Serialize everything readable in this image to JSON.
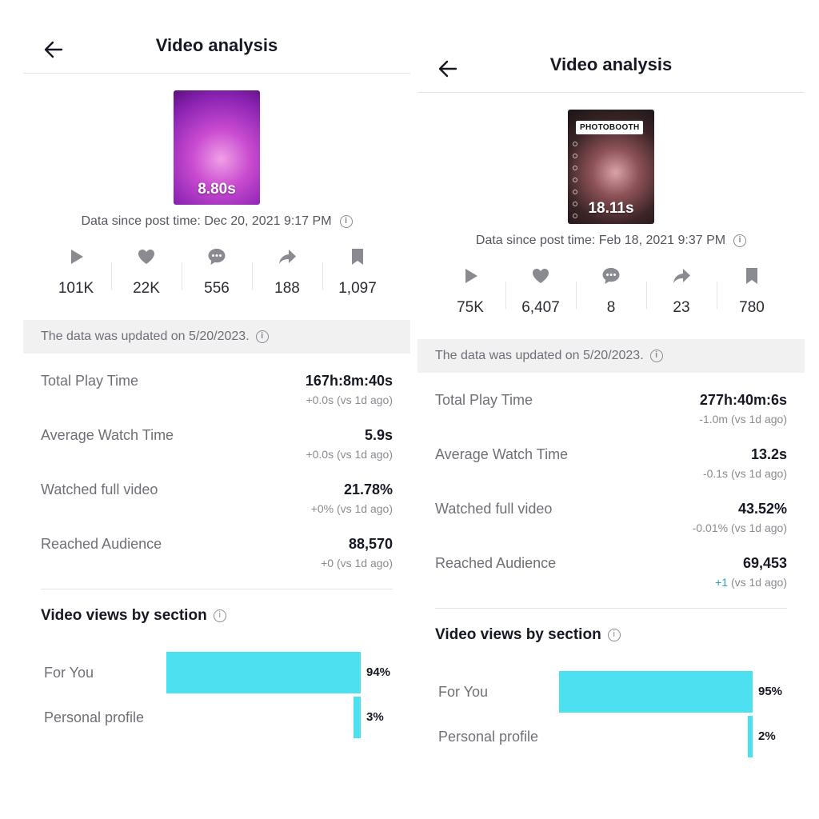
{
  "left": {
    "title": "Video analysis",
    "duration": "8.80s",
    "since": "Data since post time: Dec 20, 2021 9:17 PM",
    "stats": [
      {
        "icon": "play-icon",
        "value": "101K"
      },
      {
        "icon": "heart-icon",
        "value": "22K"
      },
      {
        "icon": "comment-icon",
        "value": "556"
      },
      {
        "icon": "share-icon",
        "value": "188"
      },
      {
        "icon": "bookmark-icon",
        "value": "1,097"
      }
    ],
    "updated": "The data was updated on 5/20/2023.",
    "metrics": [
      {
        "label": "Total Play Time",
        "value": "167h:8m:40s",
        "change": "+0.0s (vs 1d ago)"
      },
      {
        "label": "Average Watch Time",
        "value": "5.9s",
        "change": "+0.0s (vs 1d ago)"
      },
      {
        "label": "Watched full video",
        "value": "21.78%",
        "change": "+0% (vs 1d ago)"
      },
      {
        "label": "Reached Audience",
        "value": "88,570",
        "change": "+0 (vs 1d ago)"
      }
    ],
    "section_title": "Video views by section",
    "sections": [
      {
        "label": "For You",
        "percent_text": "94%",
        "percent": 94
      },
      {
        "label": "Personal profile",
        "percent_text": "3%",
        "percent": 3
      }
    ]
  },
  "right": {
    "title": "Video analysis",
    "duration": "18.11s",
    "overlay_text": "PHOTOBOOTH",
    "since": "Data since post time: Feb 18, 2021 9:37 PM",
    "stats": [
      {
        "icon": "play-icon",
        "value": "75K"
      },
      {
        "icon": "heart-icon",
        "value": "6,407"
      },
      {
        "icon": "comment-icon",
        "value": "8"
      },
      {
        "icon": "share-icon",
        "value": "23"
      },
      {
        "icon": "bookmark-icon",
        "value": "780"
      }
    ],
    "updated": "The data was updated on 5/20/2023.",
    "metrics": [
      {
        "label": "Total Play Time",
        "value": "277h:40m:6s",
        "change": "-1.0m (vs 1d ago)"
      },
      {
        "label": "Average Watch Time",
        "value": "13.2s",
        "change": "-0.1s (vs 1d ago)"
      },
      {
        "label": "Watched full video",
        "value": "43.52%",
        "change": "-0.01% (vs 1d ago)"
      },
      {
        "label": "Reached Audience",
        "value": "69,453",
        "change_prefix": "+1",
        "change_suffix": " (vs 1d ago)"
      }
    ],
    "section_title": "Video views by section",
    "sections": [
      {
        "label": "For You",
        "percent_text": "95%",
        "percent": 95
      },
      {
        "label": "Personal profile",
        "percent_text": "2%",
        "percent": 2
      }
    ]
  },
  "colors": {
    "bar": "#4ce0f0",
    "positive": "#27a4b5",
    "icon": "#8a8b91"
  }
}
